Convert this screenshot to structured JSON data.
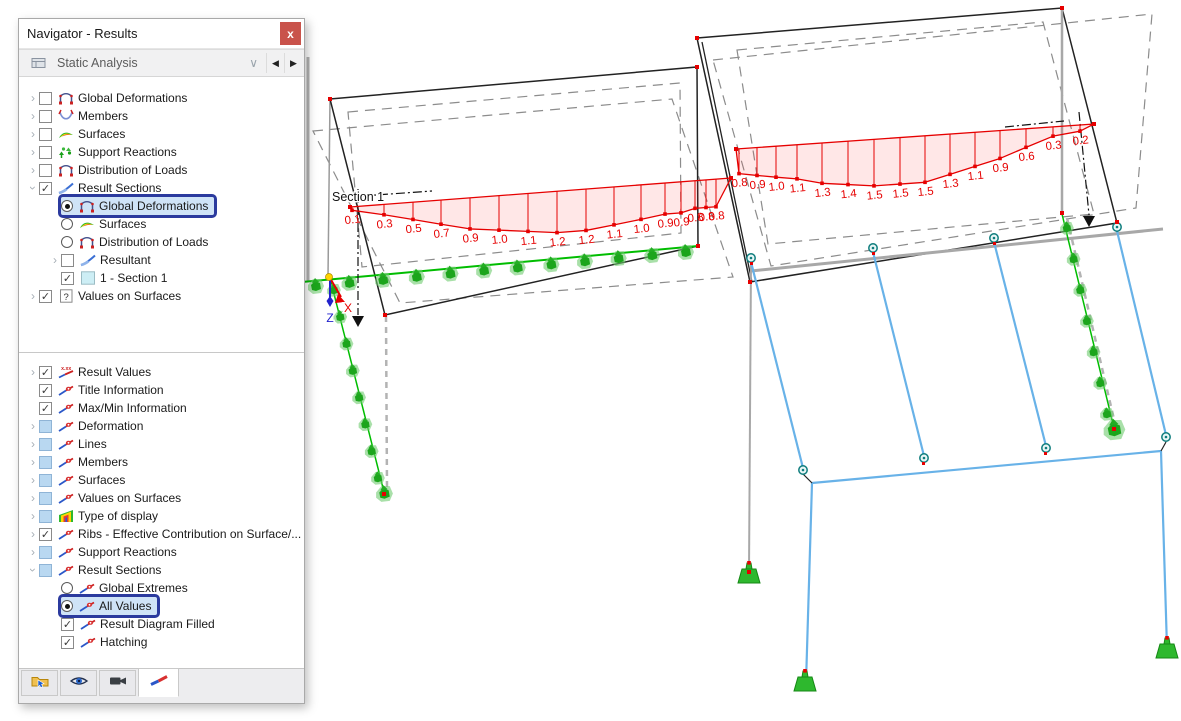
{
  "window": {
    "title": "Navigator - Results",
    "close_glyph": "x"
  },
  "toolbar": {
    "analysis_label": "Static Analysis"
  },
  "icons": {
    "chevron_collapsed": "›",
    "check": "✓",
    "prev": "◀",
    "next": "▶",
    "dropdown": "∨"
  },
  "tree_results": {
    "items": [
      {
        "chev": "c",
        "ctrl": "cb",
        "state": 0,
        "icon": "frame",
        "label": "Global Deformations",
        "lvl": 0
      },
      {
        "chev": "c",
        "ctrl": "cb",
        "state": 0,
        "icon": "member",
        "label": "Members",
        "lvl": 0
      },
      {
        "chev": "c",
        "ctrl": "cb",
        "state": 0,
        "icon": "surface",
        "label": "Surfaces",
        "lvl": 0
      },
      {
        "chev": "c",
        "ctrl": "cb",
        "state": 0,
        "icon": "support",
        "label": "Support Reactions",
        "lvl": 0
      },
      {
        "chev": "c",
        "ctrl": "cb",
        "state": 0,
        "icon": "frame",
        "label": "Distribution of Loads",
        "lvl": 0
      },
      {
        "chev": "e",
        "ctrl": "cb",
        "state": 1,
        "icon": "section",
        "label": "Result Sections",
        "lvl": 0
      },
      {
        "chev": null,
        "ctrl": "radio",
        "state": 1,
        "icon": "frame",
        "label": "Global Deformations",
        "lvl": 1,
        "selected": true
      },
      {
        "chev": null,
        "ctrl": "radio",
        "state": 0,
        "icon": "surface",
        "label": "Surfaces",
        "lvl": 1
      },
      {
        "chev": null,
        "ctrl": "radio",
        "state": 0,
        "icon": "frame",
        "label": "Distribution of Loads",
        "lvl": 1
      },
      {
        "chev": "c",
        "ctrl": "cb",
        "state": 0,
        "icon": "section",
        "label": "Resultant",
        "lvl": 1
      },
      {
        "chev": null,
        "ctrl": "cb",
        "state": 1,
        "icon": "swatch",
        "label": "1 - Section 1",
        "lvl": 1
      },
      {
        "chev": "c",
        "ctrl": "cb",
        "state": 1,
        "icon": "question",
        "label": "Values on Surfaces",
        "lvl": 0
      }
    ]
  },
  "tree_display": {
    "items": [
      {
        "chev": "c",
        "ctrl": "cb",
        "state": 1,
        "icon": "xvalues",
        "label": "Result Values",
        "lvl": 0
      },
      {
        "chev": null,
        "ctrl": "cb",
        "state": 1,
        "icon": "eyesec",
        "label": "Title Information",
        "lvl": 0
      },
      {
        "chev": null,
        "ctrl": "cb",
        "state": 1,
        "icon": "eyesec",
        "label": "Max/Min Information",
        "lvl": 0
      },
      {
        "chev": "c",
        "ctrl": "cb",
        "state": 2,
        "icon": "eyesec",
        "label": "Deformation",
        "lvl": 0
      },
      {
        "chev": "c",
        "ctrl": "cb",
        "state": 2,
        "icon": "eyesec",
        "label": "Lines",
        "lvl": 0
      },
      {
        "chev": "c",
        "ctrl": "cb",
        "state": 2,
        "icon": "eyesec",
        "label": "Members",
        "lvl": 0
      },
      {
        "chev": "c",
        "ctrl": "cb",
        "state": 2,
        "icon": "eyesec",
        "label": "Surfaces",
        "lvl": 0
      },
      {
        "chev": "c",
        "ctrl": "cb",
        "state": 2,
        "icon": "eyesec",
        "label": "Values on Surfaces",
        "lvl": 0
      },
      {
        "chev": "c",
        "ctrl": "cb",
        "state": 2,
        "icon": "rainbow",
        "label": "Type of display",
        "lvl": 0
      },
      {
        "chev": "c",
        "ctrl": "cb",
        "state": 1,
        "icon": "eyesec",
        "label": "Ribs - Effective Contribution on Surface/...",
        "lvl": 0
      },
      {
        "chev": "c",
        "ctrl": "cb",
        "state": 2,
        "icon": "eyesec",
        "label": "Support Reactions",
        "lvl": 0
      },
      {
        "chev": "e",
        "ctrl": "cb",
        "state": 2,
        "icon": "eyesec",
        "label": "Result Sections",
        "lvl": 0
      },
      {
        "chev": null,
        "ctrl": "radio",
        "state": 0,
        "icon": "eyesec",
        "label": "Global Extremes",
        "lvl": 1
      },
      {
        "chev": null,
        "ctrl": "radio",
        "state": 1,
        "icon": "eyesec",
        "label": "All Values",
        "lvl": 1,
        "selected": true
      },
      {
        "chev": null,
        "ctrl": "cb",
        "state": 1,
        "icon": "eyesec",
        "label": "Result Diagram Filled",
        "lvl": 1
      },
      {
        "chev": null,
        "ctrl": "cb",
        "state": 1,
        "icon": "eyesec",
        "label": "Hatching",
        "lvl": 1
      }
    ]
  },
  "bottom_tabs": {
    "tabs": [
      {
        "name": "panel-tab-data",
        "icon": "folder-arrow-icon",
        "active": false
      },
      {
        "name": "panel-tab-display",
        "icon": "eye-icon",
        "active": false
      },
      {
        "name": "panel-tab-views",
        "icon": "camera-icon",
        "active": false
      },
      {
        "name": "panel-tab-results",
        "icon": "result-diagram-icon",
        "active": true
      }
    ]
  },
  "viewport": {
    "section_label": "Section 1",
    "axes": {
      "x": "X",
      "z": "Z"
    },
    "colors": {
      "result": "#e60000",
      "supports": "#00bd00",
      "members": "#68b2e8",
      "highlight": "#2b3a9e"
    },
    "result_diagrams": {
      "left": {
        "values": [
          "0.1",
          "0.3",
          "0.5",
          "0.7",
          "0.9",
          "1.0",
          "1.1",
          "1.2",
          "1.2",
          "1.1",
          "1.0",
          "0.9",
          "0.9",
          "0.8",
          "0.8",
          "0.8"
        ]
      },
      "right": {
        "values": [
          "0.8",
          "0.9",
          "1.0",
          "1.1",
          "1.3",
          "1.4",
          "1.5",
          "1.5",
          "1.5",
          "1.3",
          "1.1",
          "0.9",
          "0.6",
          "0.3",
          "0.2"
        ]
      }
    }
  }
}
